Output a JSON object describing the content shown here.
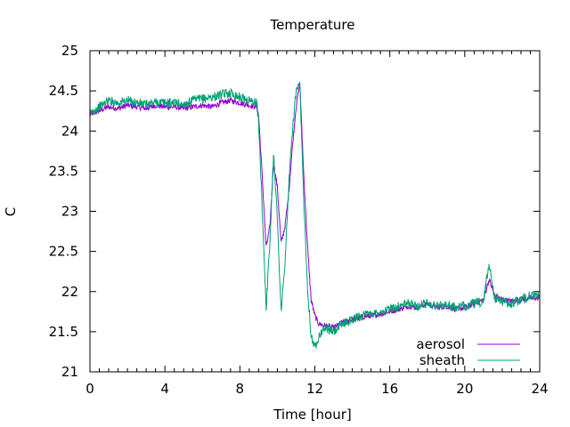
{
  "chart_data": {
    "type": "line",
    "title": "Temperature",
    "xlabel": "Time [hour]",
    "ylabel": "C",
    "xlim": [
      0,
      24
    ],
    "ylim": [
      21,
      25
    ],
    "xticks": [
      0,
      4,
      8,
      12,
      16,
      20,
      24
    ],
    "xtick_labels": [
      "0",
      "4",
      "8",
      "12",
      "16",
      "20",
      "24"
    ],
    "yticks": [
      21,
      21.5,
      22,
      22.5,
      23,
      23.5,
      24,
      24.5,
      25
    ],
    "ytick_labels": [
      "21",
      "21.5",
      "22",
      "22.5",
      "23",
      "23.5",
      "24",
      "24.5",
      "25"
    ],
    "grid": false,
    "legend_position": "bottom-right",
    "series": [
      {
        "name": "aerosol",
        "color": "#9400d3",
        "x": [
          0,
          0.5,
          1,
          1.5,
          2,
          2.5,
          3,
          3.5,
          4,
          4.5,
          5,
          5.5,
          6,
          6.5,
          7,
          7.5,
          8,
          8.5,
          8.9,
          9.0,
          9.2,
          9.4,
          9.6,
          9.8,
          10.0,
          10.2,
          10.4,
          10.6,
          10.8,
          11.0,
          11.2,
          11.4,
          11.6,
          11.8,
          12.0,
          12.2,
          12.5,
          13,
          13.5,
          14,
          14.5,
          15,
          15.5,
          16,
          16.5,
          17,
          17.5,
          18,
          18.5,
          19,
          19.5,
          20,
          20.5,
          21,
          21.3,
          21.6,
          22,
          22.5,
          23,
          23.5,
          24
        ],
        "y": [
          24.2,
          24.25,
          24.3,
          24.28,
          24.32,
          24.3,
          24.28,
          24.32,
          24.3,
          24.3,
          24.28,
          24.3,
          24.32,
          24.3,
          24.35,
          24.38,
          24.35,
          24.32,
          24.3,
          24.2,
          23.4,
          22.55,
          22.8,
          23.6,
          23.3,
          22.6,
          22.8,
          23.2,
          23.8,
          24.3,
          24.6,
          23.5,
          22.6,
          21.9,
          21.7,
          21.6,
          21.58,
          21.55,
          21.62,
          21.65,
          21.68,
          21.7,
          21.72,
          21.75,
          21.78,
          21.82,
          21.8,
          21.85,
          21.8,
          21.82,
          21.78,
          21.8,
          21.85,
          21.9,
          22.15,
          21.95,
          21.9,
          21.88,
          21.9,
          21.92,
          21.92
        ]
      },
      {
        "name": "sheath",
        "color": "#009e73",
        "x": [
          0,
          0.5,
          1,
          1.5,
          2,
          2.5,
          3,
          3.5,
          4,
          4.5,
          5,
          5.5,
          6,
          6.5,
          7,
          7.5,
          8,
          8.5,
          8.9,
          9.0,
          9.2,
          9.4,
          9.6,
          9.8,
          10.0,
          10.2,
          10.4,
          10.6,
          10.8,
          11.0,
          11.2,
          11.4,
          11.6,
          11.8,
          12.0,
          12.2,
          12.5,
          13,
          13.5,
          14,
          14.5,
          15,
          15.5,
          16,
          16.5,
          17,
          17.5,
          18,
          18.5,
          19,
          19.5,
          20,
          20.5,
          21,
          21.3,
          21.6,
          22,
          22.5,
          23,
          23.5,
          24
        ],
        "y": [
          24.22,
          24.3,
          24.38,
          24.35,
          24.38,
          24.35,
          24.33,
          24.36,
          24.35,
          24.35,
          24.33,
          24.38,
          24.4,
          24.42,
          24.45,
          24.48,
          24.42,
          24.38,
          24.35,
          24.1,
          23.0,
          21.8,
          22.6,
          23.75,
          22.9,
          21.75,
          22.3,
          23.3,
          24.0,
          24.5,
          24.55,
          23.2,
          22.1,
          21.45,
          21.3,
          21.45,
          21.55,
          21.5,
          21.6,
          21.65,
          21.7,
          21.72,
          21.75,
          21.78,
          21.82,
          21.85,
          21.82,
          21.86,
          21.82,
          21.84,
          21.8,
          21.82,
          21.85,
          21.88,
          22.35,
          21.92,
          21.88,
          21.85,
          21.9,
          21.95,
          21.95
        ]
      }
    ]
  }
}
